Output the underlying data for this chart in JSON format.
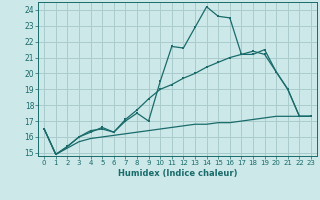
{
  "xlabel": "Humidex (Indice chaleur)",
  "ylabel": "",
  "bg_color": "#cce8e8",
  "grid_color": "#aacccc",
  "line_color": "#1a6b6b",
  "xlim": [
    -0.5,
    23.5
  ],
  "ylim": [
    14.8,
    24.5
  ],
  "yticks": [
    15,
    16,
    17,
    18,
    19,
    20,
    21,
    22,
    23,
    24
  ],
  "xticks": [
    0,
    1,
    2,
    3,
    4,
    5,
    6,
    7,
    8,
    9,
    10,
    11,
    12,
    13,
    14,
    15,
    16,
    17,
    18,
    19,
    20,
    21,
    22,
    23
  ],
  "series1_x": [
    0,
    1,
    2,
    3,
    4,
    5,
    6,
    7,
    8,
    9,
    10,
    11,
    12,
    13,
    14,
    15,
    16,
    17,
    18,
    19,
    20,
    21,
    22,
    23
  ],
  "series1_y": [
    16.5,
    14.9,
    15.4,
    16.0,
    16.3,
    16.6,
    16.3,
    17.0,
    17.5,
    17.0,
    19.5,
    21.7,
    21.6,
    22.9,
    24.2,
    23.6,
    23.5,
    21.2,
    21.2,
    21.5,
    20.1,
    19.0,
    17.3,
    17.3
  ],
  "series2_x": [
    0,
    1,
    2,
    3,
    4,
    5,
    6,
    7,
    8,
    9,
    10,
    11,
    12,
    13,
    14,
    15,
    16,
    17,
    18,
    19,
    20,
    21,
    22,
    23
  ],
  "series2_y": [
    16.5,
    14.9,
    15.4,
    16.0,
    16.4,
    16.5,
    16.3,
    17.1,
    17.7,
    18.4,
    19.0,
    19.3,
    19.7,
    20.0,
    20.4,
    20.7,
    21.0,
    21.2,
    21.4,
    21.2,
    20.1,
    19.0,
    17.3,
    17.3
  ],
  "series3_x": [
    0,
    1,
    2,
    3,
    4,
    5,
    6,
    7,
    8,
    9,
    10,
    11,
    12,
    13,
    14,
    15,
    16,
    17,
    18,
    19,
    20,
    21,
    22,
    23
  ],
  "series3_y": [
    16.5,
    14.9,
    15.3,
    15.7,
    15.9,
    16.0,
    16.1,
    16.2,
    16.3,
    16.4,
    16.5,
    16.6,
    16.7,
    16.8,
    16.8,
    16.9,
    16.9,
    17.0,
    17.1,
    17.2,
    17.3,
    17.3,
    17.3,
    17.3
  ]
}
